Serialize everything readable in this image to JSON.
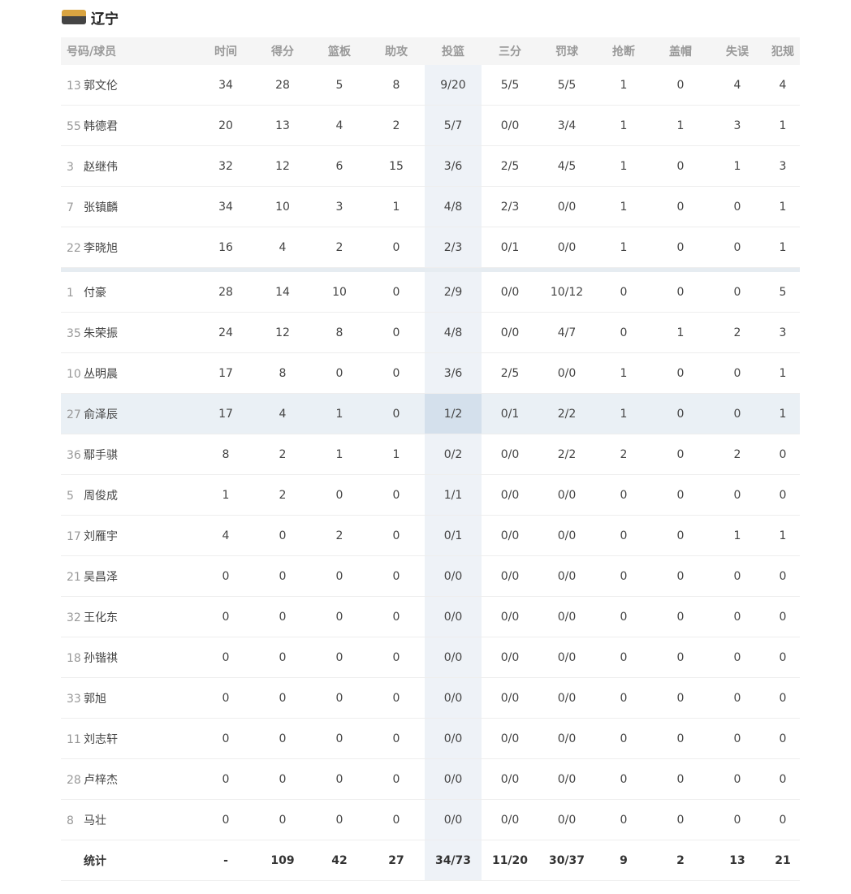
{
  "team": {
    "name": "辽宁",
    "logo_icon": "liaoning-team-logo"
  },
  "columns": [
    "号码/球员",
    "时间",
    "得分",
    "篮板",
    "助攻",
    "投篮",
    "三分",
    "罚球",
    "抢断",
    "盖帽",
    "失误",
    "犯规"
  ],
  "starters": [
    {
      "number": "13",
      "name": "郭文伦",
      "stats": [
        "34",
        "28",
        "5",
        "8",
        "9/20",
        "5/5",
        "5/5",
        "1",
        "0",
        "4",
        "4"
      ]
    },
    {
      "number": "55",
      "name": "韩德君",
      "stats": [
        "20",
        "13",
        "4",
        "2",
        "5/7",
        "0/0",
        "3/4",
        "1",
        "1",
        "3",
        "1"
      ]
    },
    {
      "number": "3",
      "name": "赵继伟",
      "stats": [
        "32",
        "12",
        "6",
        "15",
        "3/6",
        "2/5",
        "4/5",
        "1",
        "0",
        "1",
        "3"
      ]
    },
    {
      "number": "7",
      "name": "张镇麟",
      "stats": [
        "34",
        "10",
        "3",
        "1",
        "4/8",
        "2/3",
        "0/0",
        "1",
        "0",
        "0",
        "1"
      ]
    },
    {
      "number": "22",
      "name": "李晓旭",
      "stats": [
        "16",
        "4",
        "2",
        "0",
        "2/3",
        "0/1",
        "0/0",
        "1",
        "0",
        "0",
        "1"
      ]
    }
  ],
  "bench": [
    {
      "number": "1",
      "name": "付豪",
      "stats": [
        "28",
        "14",
        "10",
        "0",
        "2/9",
        "0/0",
        "10/12",
        "0",
        "0",
        "0",
        "5"
      ]
    },
    {
      "number": "35",
      "name": "朱荣振",
      "stats": [
        "24",
        "12",
        "8",
        "0",
        "4/8",
        "0/0",
        "4/7",
        "0",
        "1",
        "2",
        "3"
      ]
    },
    {
      "number": "10",
      "name": "丛明晨",
      "stats": [
        "17",
        "8",
        "0",
        "0",
        "3/6",
        "2/5",
        "0/0",
        "1",
        "0",
        "0",
        "1"
      ]
    },
    {
      "number": "27",
      "name": "俞泽辰",
      "stats": [
        "17",
        "4",
        "1",
        "0",
        "1/2",
        "0/1",
        "2/2",
        "1",
        "0",
        "0",
        "1"
      ]
    },
    {
      "number": "36",
      "name": "鄢手骐",
      "stats": [
        "8",
        "2",
        "1",
        "1",
        "0/2",
        "0/0",
        "2/2",
        "2",
        "0",
        "2",
        "0"
      ]
    },
    {
      "number": "5",
      "name": "周俊成",
      "stats": [
        "1",
        "2",
        "0",
        "0",
        "1/1",
        "0/0",
        "0/0",
        "0",
        "0",
        "0",
        "0"
      ]
    },
    {
      "number": "17",
      "name": "刘雁宇",
      "stats": [
        "4",
        "0",
        "2",
        "0",
        "0/1",
        "0/0",
        "0/0",
        "0",
        "0",
        "1",
        "1"
      ]
    },
    {
      "number": "21",
      "name": "吴昌泽",
      "stats": [
        "0",
        "0",
        "0",
        "0",
        "0/0",
        "0/0",
        "0/0",
        "0",
        "0",
        "0",
        "0"
      ]
    },
    {
      "number": "32",
      "name": "王化东",
      "stats": [
        "0",
        "0",
        "0",
        "0",
        "0/0",
        "0/0",
        "0/0",
        "0",
        "0",
        "0",
        "0"
      ]
    },
    {
      "number": "18",
      "name": "孙锴祺",
      "stats": [
        "0",
        "0",
        "0",
        "0",
        "0/0",
        "0/0",
        "0/0",
        "0",
        "0",
        "0",
        "0"
      ]
    },
    {
      "number": "33",
      "name": "郭旭",
      "stats": [
        "0",
        "0",
        "0",
        "0",
        "0/0",
        "0/0",
        "0/0",
        "0",
        "0",
        "0",
        "0"
      ]
    },
    {
      "number": "11",
      "name": "刘志轩",
      "stats": [
        "0",
        "0",
        "0",
        "0",
        "0/0",
        "0/0",
        "0/0",
        "0",
        "0",
        "0",
        "0"
      ]
    },
    {
      "number": "28",
      "name": "卢梓杰",
      "stats": [
        "0",
        "0",
        "0",
        "0",
        "0/0",
        "0/0",
        "0/0",
        "0",
        "0",
        "0",
        "0"
      ]
    },
    {
      "number": "8",
      "name": "马壮",
      "stats": [
        "0",
        "0",
        "0",
        "0",
        "0/0",
        "0/0",
        "0/0",
        "0",
        "0",
        "0",
        "0"
      ]
    }
  ],
  "totals": {
    "label": "统计",
    "stats": [
      "-",
      "109",
      "42",
      "27",
      "34/73",
      "11/20",
      "30/37",
      "9",
      "2",
      "13",
      "21"
    ]
  },
  "highlight": {
    "column": "投篮",
    "row_number": "27",
    "column_color": "#eef2f7",
    "row_color": "#eaf0f5"
  }
}
